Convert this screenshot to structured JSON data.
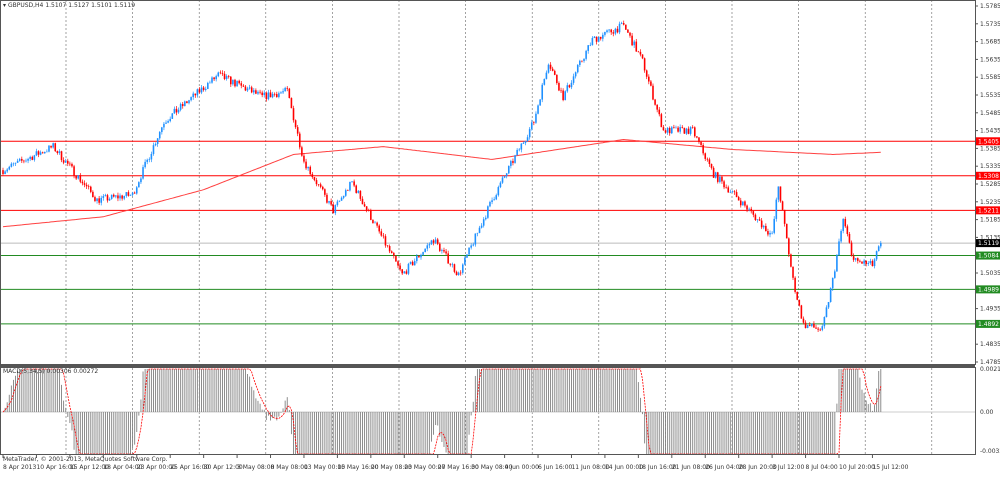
{
  "header": {
    "symbol": "GBPUSD,H4",
    "ohlc": "1.5107 1.5127 1.5101 1.5119"
  },
  "macd_label": "MACD(5,34,5) 0.00306 0.00272",
  "copyright": "MetaTrader, © 2001-2013, MetaQuotes Software Corp.",
  "colors": {
    "bull": "#1e90ff",
    "bear": "#ff0000",
    "ma": "#ff4040",
    "resistance": "#ff0000",
    "support": "#228b22",
    "current": "#000000",
    "hist": "#808080"
  },
  "chart_data": [
    {
      "type": "candlestick",
      "title": "GBPUSD,H4",
      "timeframe": "H4",
      "ylim": [
        1.4785,
        1.5785
      ],
      "y_ticks": [
        "1.5785",
        "1.5735",
        "1.5685",
        "1.5635",
        "1.5585",
        "1.5535",
        "1.5485",
        "1.5435",
        "1.5385",
        "1.5335",
        "1.5285",
        "1.5235",
        "1.5185",
        "1.5135",
        "1.5035",
        "1.4935",
        "1.4835",
        "1.4785"
      ],
      "x_ticks": [
        "8 Apr 2013",
        "10 Apr 16:00",
        "15 Apr 12:00",
        "18 Apr 04:00",
        "23 Apr 00:00",
        "25 Apr 16:00",
        "30 Apr 12:00",
        "3 May 08:00",
        "8 May 08:00",
        "13 May 00:00",
        "15 May 16:00",
        "20 May 08:00",
        "23 May 00:00",
        "27 May 16:00",
        "30 May 08:00",
        "4 Jun 00:00",
        "6 Jun 16:00",
        "11 Jun 08:00",
        "14 Jun 00:00",
        "18 Jun 16:00",
        "21 Jun 08:00",
        "26 Jun 04:00",
        "28 Jun 20:00",
        "3 Jul 12:00",
        "8 Jul 04:00",
        "10 Jul 20:00",
        "15 Jul 12:00"
      ],
      "bars_between_ticks": 16,
      "price_path": [
        [
          0,
          1.5324
        ],
        [
          24,
          1.539
        ],
        [
          45,
          1.524
        ],
        [
          62,
          1.5255
        ],
        [
          77,
          1.546
        ],
        [
          103,
          1.5591
        ],
        [
          124,
          1.553
        ],
        [
          136,
          1.5546
        ],
        [
          144,
          1.535
        ],
        [
          158,
          1.521
        ],
        [
          167,
          1.529
        ],
        [
          191,
          1.503
        ],
        [
          206,
          1.513
        ],
        [
          218,
          1.503
        ],
        [
          234,
          1.524
        ],
        [
          254,
          1.546
        ],
        [
          261,
          1.563
        ],
        [
          268,
          1.553
        ],
        [
          282,
          1.569
        ],
        [
          297,
          1.573
        ],
        [
          306,
          1.563
        ],
        [
          316,
          1.5435
        ],
        [
          330,
          1.5435
        ],
        [
          340,
          1.5313
        ],
        [
          354,
          1.523
        ],
        [
          368,
          1.514
        ],
        [
          371,
          1.528
        ],
        [
          378,
          1.5015
        ],
        [
          383,
          1.489
        ],
        [
          392,
          1.4875
        ],
        [
          397,
          1.5015
        ],
        [
          402,
          1.5185
        ],
        [
          407,
          1.507
        ],
        [
          416,
          1.5057
        ],
        [
          420,
          1.5119
        ]
      ],
      "moving_average": [
        [
          0,
          1.5165
        ],
        [
          48,
          1.5193
        ],
        [
          96,
          1.5269
        ],
        [
          139,
          1.5368
        ],
        [
          182,
          1.539
        ],
        [
          234,
          1.5354
        ],
        [
          297,
          1.541
        ],
        [
          349,
          1.5382
        ],
        [
          397,
          1.5368
        ],
        [
          420,
          1.5374
        ]
      ],
      "horizontal_levels": [
        {
          "price": "1.5405",
          "kind": "resistance"
        },
        {
          "price": "1.5308",
          "kind": "resistance"
        },
        {
          "price": "1.5211",
          "kind": "resistance"
        },
        {
          "price": "1.5084",
          "kind": "support"
        },
        {
          "price": "1.4989",
          "kind": "support"
        },
        {
          "price": "1.4892",
          "kind": "support"
        }
      ],
      "current_price": "1.5119"
    },
    {
      "type": "bar",
      "title": "MACD(5,34,5) 0.00306 0.00272",
      "ylim": [
        -0.00327,
        0.00211
      ],
      "y_ticks": [
        "0.00211",
        "0.00",
        "-0.00327"
      ]
    }
  ]
}
